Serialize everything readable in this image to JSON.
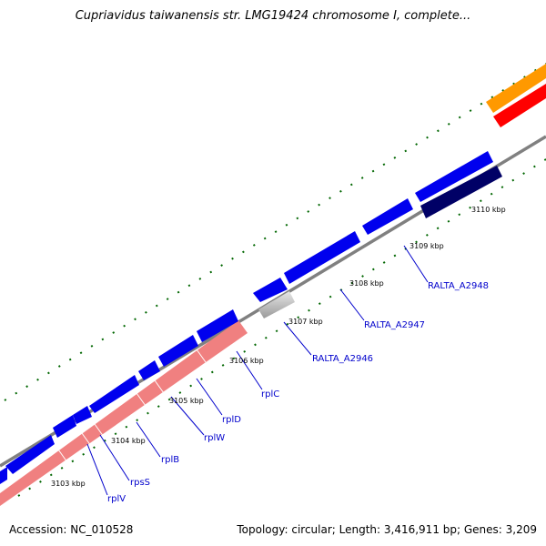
{
  "title": "Cupriavidus taiwanensis str. LMG19424 chromosome I, complete...",
  "footer": {
    "accession": "Accession: NC_010528",
    "summary": "Topology: circular; Length: 3,416,911 bp; Genes: 3,209"
  },
  "scale_labels": [
    {
      "name": "tick-3103-kbp",
      "text": "3103 kbp"
    },
    {
      "name": "tick-3104-kbp",
      "text": "3104 kbp"
    },
    {
      "name": "tick-3105-kbp",
      "text": "3105 kbp"
    },
    {
      "name": "tick-3106-kbp",
      "text": "3106 kbp"
    },
    {
      "name": "tick-3107-kbp",
      "text": "3107 kbp"
    },
    {
      "name": "tick-3108-kbp",
      "text": "3108 kbp"
    },
    {
      "name": "tick-3109-kbp",
      "text": "3109 kbp"
    },
    {
      "name": "tick-3110-kbp",
      "text": "3110 kbp"
    }
  ],
  "gene_labels": [
    {
      "name": "gene-label-rplV",
      "text": "rplV"
    },
    {
      "name": "gene-label-rpsS",
      "text": "rpsS"
    },
    {
      "name": "gene-label-rplB",
      "text": "rplB"
    },
    {
      "name": "gene-label-rplW",
      "text": "rplW"
    },
    {
      "name": "gene-label-rplD",
      "text": "rplD"
    },
    {
      "name": "gene-label-rplC",
      "text": "rplC"
    },
    {
      "name": "gene-label-RALTA_A2946",
      "text": "RALTA_A2946"
    },
    {
      "name": "gene-label-RALTA_A2947",
      "text": "RALTA_A2947"
    },
    {
      "name": "gene-label-RALTA_A2948",
      "text": "RALTA_A2948"
    }
  ],
  "colors": {
    "cds_forward": "#0000ee",
    "rrna_like": "#f08080",
    "dark_cds": "#000066",
    "grey_feature": "#c8c8c8",
    "orange_feature": "#ff9900",
    "red_feature": "#ff0000",
    "backbone": "#808080",
    "ticks": "#006600",
    "label_text": "#0000cc"
  }
}
